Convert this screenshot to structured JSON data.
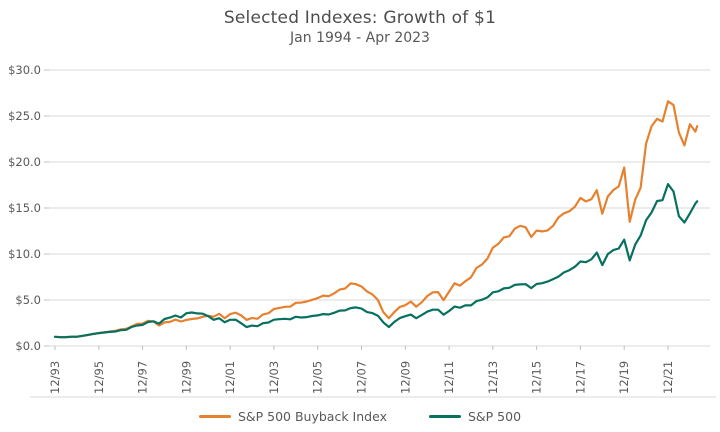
{
  "header": {
    "title": "Selected Indexes: Growth of $1",
    "subtitle": "Jan 1994 - Apr 2023"
  },
  "chart_data": {
    "type": "line",
    "title": "Selected Indexes: Growth of $1",
    "subtitle": "Jan 1994 - Apr 2023",
    "grid": true,
    "legend_position": "bottom",
    "colors": {
      "grid": "#d9d9d9",
      "tick": "#bfbfbf",
      "axis_text": "#595959",
      "title_text": "#4d4d4d"
    },
    "y_axis": {
      "min": 0,
      "max": 30,
      "step": 5,
      "tick_labels": [
        "$0.0",
        "$5.0",
        "$10.0",
        "$15.0",
        "$20.0",
        "$25.0",
        "$30.0"
      ]
    },
    "x_axis": {
      "tick_labels": [
        "12/93",
        "12/95",
        "12/97",
        "12/99",
        "12/01",
        "12/03",
        "12/05",
        "12/07",
        "12/09",
        "12/11",
        "12/13",
        "12/15",
        "12/17",
        "12/19",
        "12/21"
      ],
      "tick_interval_months": 24,
      "total_months": 352
    },
    "step_months": 3,
    "series": [
      {
        "name": "S&P 500 Buyback Index",
        "color": "#e6812f",
        "values": [
          1.0,
          0.97,
          0.96,
          1.0,
          1.0,
          1.1,
          1.2,
          1.32,
          1.41,
          1.5,
          1.56,
          1.64,
          1.8,
          1.86,
          2.13,
          2.4,
          2.43,
          2.74,
          2.66,
          2.23,
          2.57,
          2.62,
          2.87,
          2.66,
          2.84,
          2.94,
          3.0,
          3.18,
          3.28,
          3.18,
          3.5,
          3.02,
          3.47,
          3.62,
          3.33,
          2.84,
          3.04,
          2.96,
          3.43,
          3.56,
          4.02,
          4.14,
          4.26,
          4.28,
          4.7,
          4.72,
          4.84,
          5.02,
          5.21,
          5.48,
          5.41,
          5.72,
          6.13,
          6.25,
          6.8,
          6.72,
          6.47,
          5.93,
          5.61,
          5.0,
          3.66,
          3.02,
          3.68,
          4.25,
          4.44,
          4.83,
          4.27,
          4.75,
          5.42,
          5.83,
          5.86,
          4.98,
          5.91,
          6.81,
          6.56,
          7.05,
          7.47,
          8.48,
          8.85,
          9.5,
          10.7,
          11.1,
          11.8,
          11.92,
          12.76,
          13.06,
          12.9,
          11.85,
          12.54,
          12.46,
          12.56,
          13.06,
          13.98,
          14.42,
          14.65,
          15.15,
          16.1,
          15.72,
          15.96,
          16.94,
          14.38,
          16.25,
          16.95,
          17.35,
          19.4,
          13.5,
          15.9,
          17.2,
          22.0,
          23.9,
          24.7,
          24.4,
          26.6,
          26.2,
          23.2,
          21.8,
          24.1,
          23.3,
          23.9
        ]
      },
      {
        "name": "S&P 500",
        "color": "#07705e",
        "values": [
          1.0,
          0.96,
          0.97,
          1.01,
          1.01,
          1.11,
          1.21,
          1.31,
          1.39,
          1.47,
          1.53,
          1.58,
          1.72,
          1.76,
          2.07,
          2.23,
          2.29,
          2.61,
          2.69,
          2.43,
          2.94,
          3.09,
          3.31,
          3.1,
          3.56,
          3.64,
          3.54,
          3.51,
          3.24,
          2.85,
          3.02,
          2.58,
          2.85,
          2.86,
          2.48,
          2.05,
          2.22,
          2.15,
          2.48,
          2.55,
          2.86,
          2.91,
          2.96,
          2.9,
          3.17,
          3.1,
          3.14,
          3.26,
          3.33,
          3.47,
          3.42,
          3.61,
          3.85,
          3.87,
          4.12,
          4.2,
          4.06,
          3.68,
          3.58,
          3.29,
          2.56,
          2.05,
          2.62,
          3.03,
          3.24,
          3.41,
          3.02,
          3.36,
          3.73,
          3.95,
          3.95,
          3.4,
          3.8,
          4.28,
          4.16,
          4.42,
          4.41,
          4.88,
          5.02,
          5.28,
          5.84,
          5.95,
          6.26,
          6.33,
          6.64,
          6.7,
          6.72,
          6.29,
          6.74,
          6.83,
          7.0,
          7.27,
          7.54,
          8.0,
          8.25,
          8.62,
          9.19,
          9.11,
          9.42,
          10.15,
          8.79,
          9.99,
          10.42,
          10.6,
          11.55,
          9.3,
          11.02,
          12.0,
          13.67,
          14.52,
          15.76,
          15.85,
          17.6,
          16.79,
          14.11,
          13.42,
          14.41,
          15.49,
          15.73
        ]
      }
    ]
  }
}
